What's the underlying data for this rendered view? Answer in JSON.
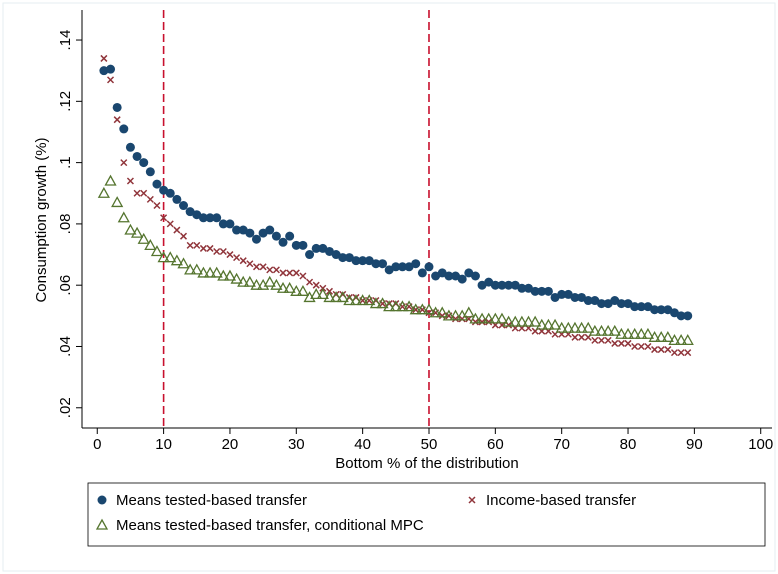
{
  "chart_data": {
    "type": "scatter",
    "x_label": "Bottom % of the distribution",
    "y_label": "Consumption growth (%)",
    "x": [
      1,
      2,
      3,
      4,
      5,
      6,
      7,
      8,
      9,
      10,
      11,
      12,
      13,
      14,
      15,
      16,
      17,
      18,
      19,
      20,
      21,
      22,
      23,
      24,
      25,
      26,
      27,
      28,
      29,
      30,
      31,
      32,
      33,
      34,
      35,
      36,
      37,
      38,
      39,
      40,
      41,
      42,
      43,
      44,
      45,
      46,
      47,
      48,
      49,
      50,
      51,
      52,
      53,
      54,
      55,
      56,
      57,
      58,
      59,
      60,
      61,
      62,
      63,
      64,
      65,
      66,
      67,
      68,
      69,
      70,
      71,
      72,
      73,
      74,
      75,
      76,
      77,
      78,
      79,
      80,
      81,
      82,
      83,
      84,
      85,
      86,
      87,
      88,
      89
    ],
    "series": [
      {
        "name": "Means tested-based transfer",
        "color": "#1a476f",
        "marker": "circle",
        "values": [
          0.13,
          0.1305,
          0.118,
          0.111,
          0.105,
          0.102,
          0.1,
          0.097,
          0.093,
          0.091,
          0.09,
          0.088,
          0.086,
          0.084,
          0.083,
          0.082,
          0.082,
          0.082,
          0.08,
          0.08,
          0.078,
          0.078,
          0.077,
          0.075,
          0.077,
          0.078,
          0.076,
          0.074,
          0.076,
          0.073,
          0.073,
          0.07,
          0.072,
          0.072,
          0.071,
          0.07,
          0.069,
          0.069,
          0.068,
          0.068,
          0.068,
          0.067,
          0.067,
          0.065,
          0.066,
          0.066,
          0.066,
          0.067,
          0.064,
          0.066,
          0.063,
          0.064,
          0.063,
          0.063,
          0.062,
          0.064,
          0.063,
          0.06,
          0.061,
          0.06,
          0.06,
          0.06,
          0.06,
          0.059,
          0.059,
          0.058,
          0.058,
          0.058,
          0.056,
          0.057,
          0.057,
          0.056,
          0.056,
          0.055,
          0.055,
          0.054,
          0.054,
          0.055,
          0.054,
          0.054,
          0.053,
          0.053,
          0.053,
          0.052,
          0.052,
          0.052,
          0.051,
          0.05,
          0.05
        ]
      },
      {
        "name": "Income-based transfer",
        "color": "#90353b",
        "marker": "x",
        "values": [
          0.134,
          0.127,
          0.114,
          0.1,
          0.094,
          0.09,
          0.09,
          0.088,
          0.086,
          0.082,
          0.08,
          0.078,
          0.076,
          0.073,
          0.073,
          0.072,
          0.072,
          0.071,
          0.071,
          0.07,
          0.069,
          0.068,
          0.067,
          0.066,
          0.066,
          0.065,
          0.065,
          0.064,
          0.064,
          0.064,
          0.063,
          0.061,
          0.06,
          0.059,
          0.058,
          0.057,
          0.057,
          0.056,
          0.056,
          0.055,
          0.055,
          0.055,
          0.054,
          0.054,
          0.054,
          0.053,
          0.053,
          0.052,
          0.052,
          0.051,
          0.051,
          0.05,
          0.05,
          0.049,
          0.049,
          0.049,
          0.048,
          0.048,
          0.048,
          0.047,
          0.047,
          0.047,
          0.046,
          0.046,
          0.046,
          0.045,
          0.045,
          0.045,
          0.044,
          0.044,
          0.044,
          0.043,
          0.043,
          0.043,
          0.042,
          0.042,
          0.042,
          0.041,
          0.041,
          0.041,
          0.04,
          0.04,
          0.04,
          0.039,
          0.039,
          0.039,
          0.038,
          0.038,
          0.038
        ]
      },
      {
        "name": "Means tested-based transfer, conditional MPC",
        "color": "#55752f",
        "marker": "triangle",
        "values": [
          0.09,
          0.094,
          0.087,
          0.082,
          0.078,
          0.077,
          0.075,
          0.073,
          0.071,
          0.069,
          0.069,
          0.068,
          0.067,
          0.065,
          0.065,
          0.064,
          0.064,
          0.064,
          0.063,
          0.063,
          0.062,
          0.061,
          0.061,
          0.06,
          0.06,
          0.061,
          0.06,
          0.059,
          0.059,
          0.058,
          0.058,
          0.056,
          0.057,
          0.057,
          0.056,
          0.056,
          0.056,
          0.055,
          0.055,
          0.055,
          0.055,
          0.054,
          0.054,
          0.053,
          0.053,
          0.053,
          0.053,
          0.052,
          0.052,
          0.052,
          0.051,
          0.051,
          0.05,
          0.05,
          0.05,
          0.051,
          0.049,
          0.049,
          0.049,
          0.049,
          0.049,
          0.048,
          0.048,
          0.048,
          0.048,
          0.048,
          0.047,
          0.047,
          0.047,
          0.046,
          0.046,
          0.046,
          0.046,
          0.046,
          0.045,
          0.045,
          0.045,
          0.045,
          0.044,
          0.044,
          0.044,
          0.044,
          0.044,
          0.043,
          0.043,
          0.043,
          0.042,
          0.042,
          0.042
        ]
      }
    ],
    "xlim": [
      -2.3,
      101.7
    ],
    "ylim": [
      0.0134,
      0.1498
    ],
    "xticks": [
      0,
      10,
      20,
      30,
      40,
      50,
      60,
      70,
      80,
      90,
      100
    ],
    "yticks": [
      {
        "value": 0.02,
        "label": ".02"
      },
      {
        "value": 0.04,
        "label": ".04"
      },
      {
        "value": 0.06,
        "label": ".06"
      },
      {
        "value": 0.08,
        "label": ".08"
      },
      {
        "value": 0.1,
        "label": ".1"
      },
      {
        "value": 0.12,
        "label": ".12"
      },
      {
        "value": 0.14,
        "label": ".14"
      }
    ],
    "xlines": [
      10,
      50
    ],
    "xline_color": "#c8102e",
    "grid": false,
    "legend": "bottom"
  }
}
